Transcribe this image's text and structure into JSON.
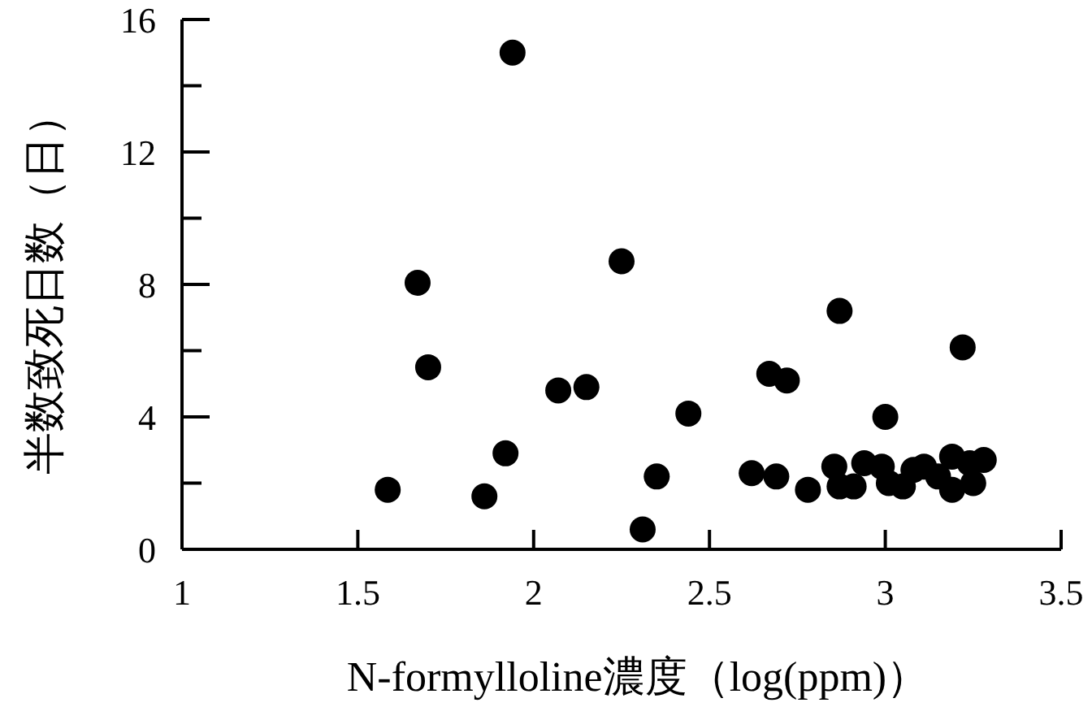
{
  "chart_data": {
    "type": "scatter",
    "xlabel": "N-formylloline濃度（log(ppm)）",
    "ylabel": "半数致死日数（日）",
    "xlim": [
      1,
      3.5
    ],
    "xticks": [
      1,
      1.5,
      2,
      2.5,
      3,
      3.5
    ],
    "ylim": [
      0,
      16
    ],
    "yticks": [
      0,
      {
        "value": 2,
        "label": null
      },
      4,
      {
        "value": 6,
        "label": null
      },
      8,
      {
        "value": 10,
        "label": null
      },
      12,
      {
        "value": 14,
        "label": null
      },
      16
    ],
    "grid": false,
    "marker": "circle",
    "series": [
      {
        "color": "#000000",
        "x": [
          1.94,
          1.67,
          1.7,
          2.25,
          2.07,
          2.15,
          1.92,
          1.585,
          1.86,
          2.31,
          2.87,
          3.22,
          2.67,
          2.72,
          2.44,
          3.0,
          2.35,
          2.62,
          2.69,
          2.78,
          2.855,
          2.87,
          2.91,
          2.94,
          2.99,
          3.01,
          3.05,
          3.08,
          3.11,
          3.15,
          3.19,
          3.19,
          3.25,
          3.24,
          3.28
        ],
        "values": [
          15.0,
          8.05,
          5.5,
          8.7,
          4.8,
          4.9,
          2.9,
          1.8,
          1.6,
          0.6,
          7.2,
          6.1,
          5.3,
          5.1,
          4.1,
          4.0,
          2.2,
          2.3,
          2.2,
          1.8,
          2.5,
          1.9,
          1.9,
          2.6,
          2.5,
          2.0,
          1.9,
          2.4,
          2.5,
          2.2,
          2.8,
          1.8,
          2.0,
          2.6,
          2.7
        ]
      }
    ]
  }
}
